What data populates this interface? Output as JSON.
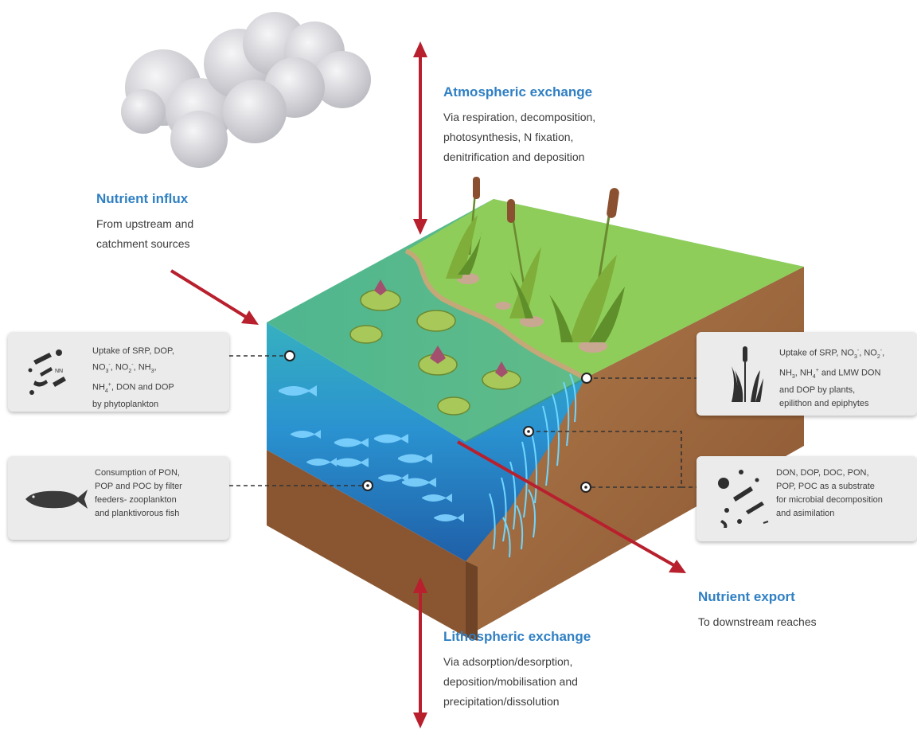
{
  "atmospheric": {
    "title": "Atmospheric exchange",
    "lines": [
      "Via respiration, decomposition,",
      "photosynthesis, N fixation,",
      "denitrification and deposition"
    ]
  },
  "influx": {
    "title": "Nutrient influx",
    "lines": [
      "From upstream and",
      "catchment sources"
    ]
  },
  "export": {
    "title": "Nutrient export",
    "lines": [
      "To downstream reaches"
    ]
  },
  "lithospheric": {
    "title": "Lithospheric exchange",
    "lines": [
      "Via adsorption/desorption,",
      "deposition/mobilisation and",
      "precipitation/dissolution"
    ]
  },
  "panels": {
    "phytoplankton": {
      "icon": "phytoplankton-icon"
    },
    "filter_feeders": {
      "icon": "fish-icon",
      "lines": [
        "Consumption of PON,",
        "POP and POC by filter",
        "feeders- zooplankton",
        "and planktivorous fish"
      ]
    },
    "plants": {
      "icon": "reed-plant-icon"
    },
    "microbes": {
      "icon": "microbes-icon",
      "lines": [
        "DON, DOP, DOC, PON,",
        "POP, POC as a substrate",
        "for microbial decomposition",
        "and asimilation"
      ]
    }
  },
  "colors": {
    "heading": "#2f7fc3",
    "arrow": "#b8202e",
    "grass": "#5fb88a",
    "water": "#2a8fcf",
    "soil": "#8a5a34"
  }
}
